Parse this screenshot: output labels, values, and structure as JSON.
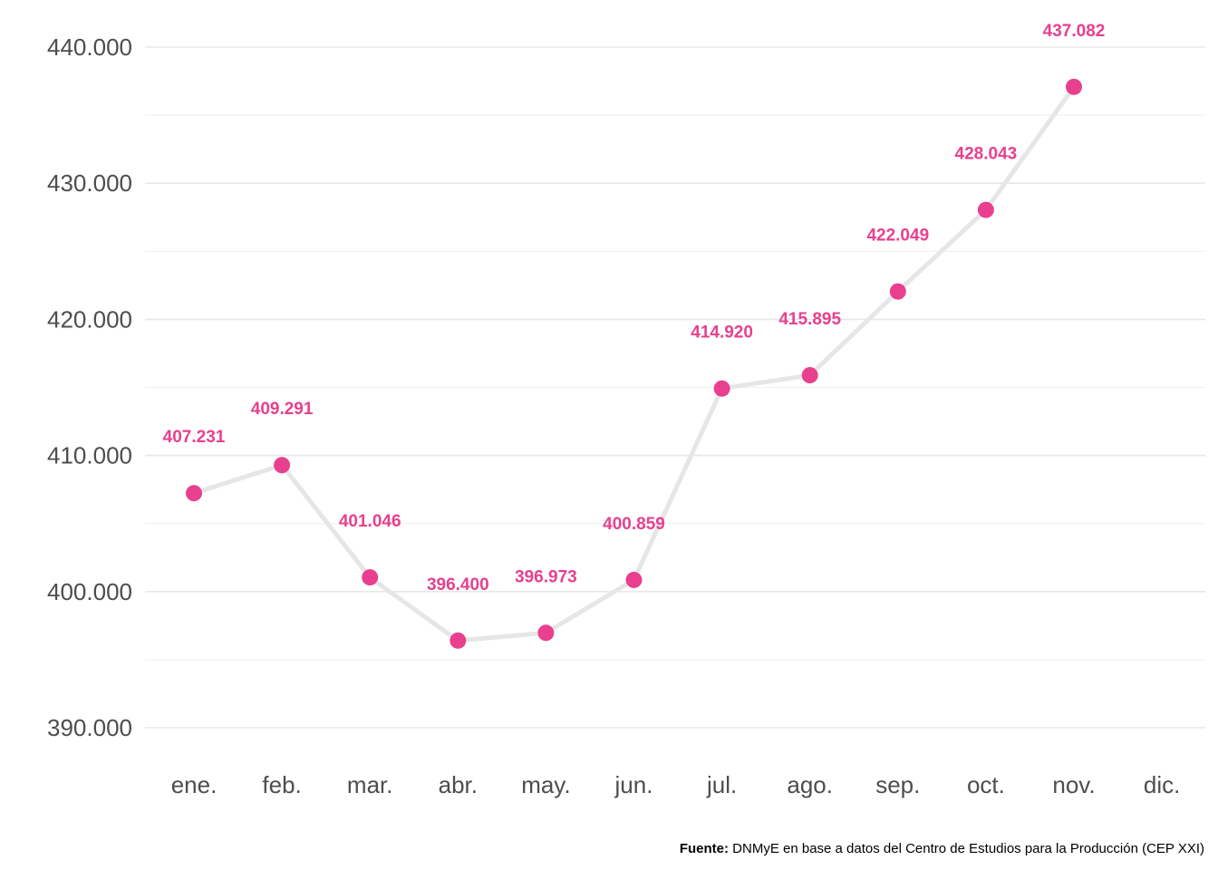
{
  "chart_data": {
    "type": "line",
    "categories": [
      "ene.",
      "feb.",
      "mar.",
      "abr.",
      "may.",
      "jun.",
      "jul.",
      "ago.",
      "sep.",
      "oct.",
      "nov.",
      "dic."
    ],
    "values": [
      407231,
      409291,
      401046,
      396400,
      396973,
      400859,
      414920,
      415895,
      422049,
      428043,
      437082,
      null
    ],
    "data_labels": [
      "407.231",
      "409.291",
      "401.046",
      "396.400",
      "396.973",
      "400.859",
      "414.920",
      "415.895",
      "422.049",
      "428.043",
      "437.082",
      ""
    ],
    "ylim": [
      390000,
      440000
    ],
    "yticks": [
      390000,
      400000,
      410000,
      420000,
      430000,
      440000
    ],
    "ytick_labels": [
      "390.000",
      "400.000",
      "410.000",
      "420.000",
      "430.000",
      "440.000"
    ],
    "title": "",
    "xlabel": "",
    "ylabel": "",
    "grid": true,
    "legend": "none",
    "line_color": "#e6e6e6",
    "point_color": "#e8408e",
    "label_color": "#e8408e"
  },
  "caption": {
    "bold": "Fuente:",
    "text": " DNMyE en base a datos del Centro de Estudios para la Producción (CEP XXI)"
  }
}
